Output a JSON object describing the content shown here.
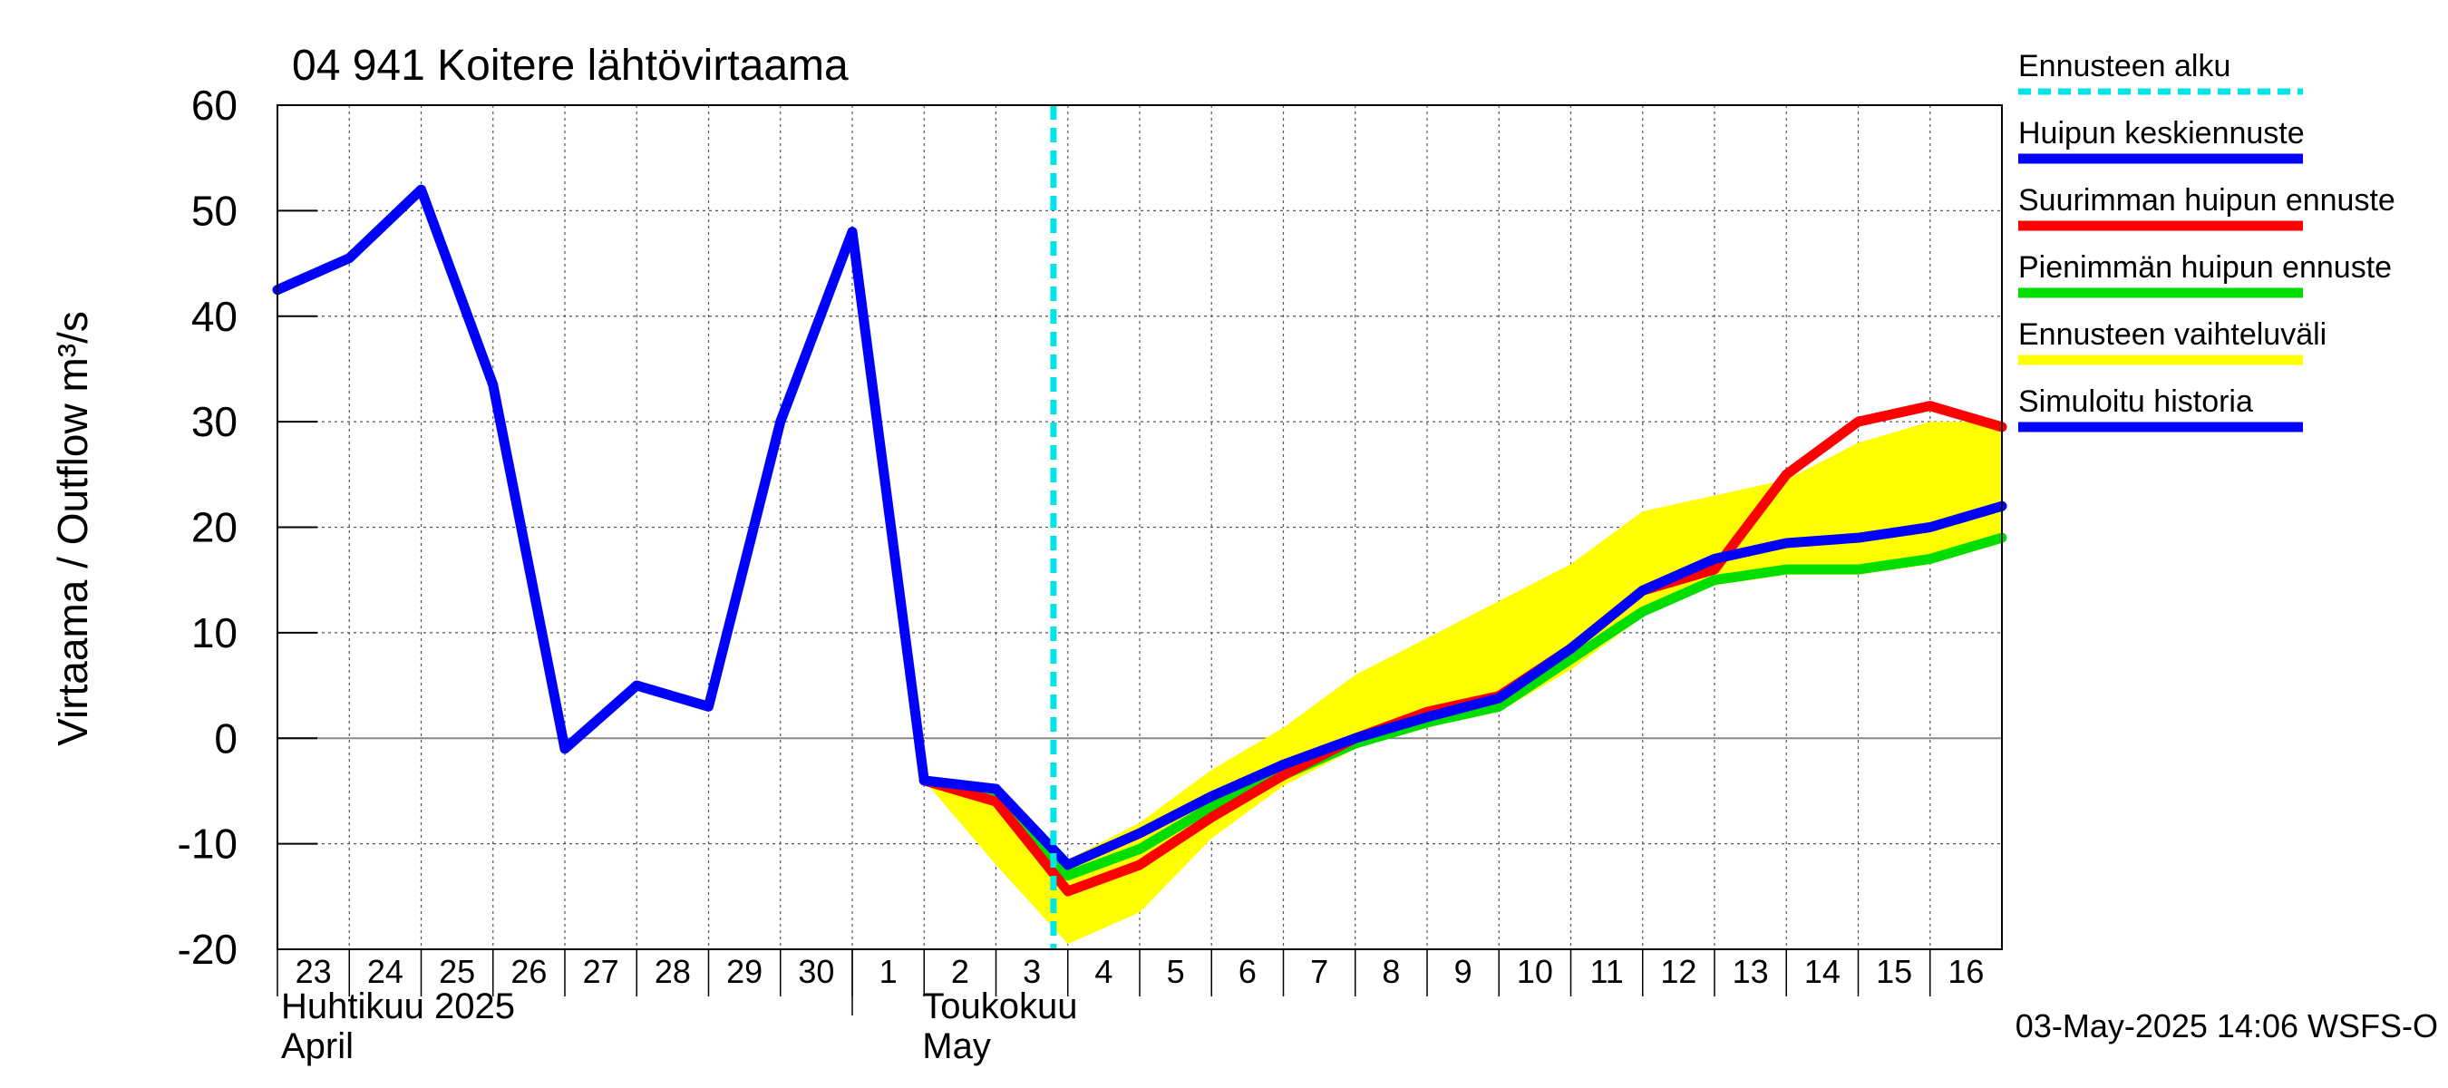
{
  "chart_data": {
    "type": "line",
    "title": "04 941 Koitere lähtövirtaama",
    "ylabel": "Virtaama / Outflow    m³/s",
    "ylim": [
      -20,
      60
    ],
    "yticks": [
      -20,
      -10,
      0,
      10,
      20,
      30,
      40,
      50,
      60
    ],
    "x_day_range": [
      23,
      47
    ],
    "grid": true,
    "legend_position": "right",
    "x_tick_labels": [
      "23",
      "24",
      "25",
      "26",
      "27",
      "28",
      "29",
      "30",
      "1",
      "2",
      "3",
      "4",
      "5",
      "6",
      "7",
      "8",
      "9",
      "10",
      "11",
      "12",
      "13",
      "14",
      "15",
      "16"
    ],
    "x_tick_days": [
      23,
      24,
      25,
      26,
      27,
      28,
      29,
      30,
      31,
      32,
      33,
      34,
      35,
      36,
      37,
      38,
      39,
      40,
      41,
      42,
      43,
      44,
      45,
      46
    ],
    "month_labels": [
      {
        "fi": "Huhtikuu  2025",
        "en": "April"
      },
      {
        "fi": "Toukokuu",
        "en": "May"
      }
    ],
    "forecast_start_day": 33.8,
    "series": [
      {
        "name": "Simuloitu historia",
        "color": "#0000ff",
        "x": [
          23,
          24,
          25,
          26,
          27,
          28,
          29,
          30,
          31,
          32,
          33
        ],
        "y": [
          42.5,
          45.5,
          52,
          33.5,
          -1,
          5,
          3,
          30,
          48,
          -4,
          -4.8
        ]
      },
      {
        "name": "Huipun keskiennuste",
        "color": "#0000ff",
        "x": [
          33,
          34,
          35,
          36,
          37,
          38,
          39,
          40,
          41,
          42,
          43,
          44,
          45,
          46,
          47
        ],
        "y": [
          -4.8,
          -12,
          -9,
          -5.5,
          -2.5,
          0,
          2,
          3.8,
          8.5,
          14,
          17,
          18.5,
          19,
          20,
          22
        ]
      },
      {
        "name": "Suurimman huipun ennuste",
        "color": "#ff0000",
        "x": [
          32,
          33,
          34,
          35,
          36,
          37,
          38,
          39,
          40,
          41,
          42,
          43,
          44,
          45,
          46,
          47
        ],
        "y": [
          -4,
          -6,
          -14.5,
          -12,
          -7.5,
          -3.5,
          0,
          2.5,
          4,
          8.5,
          14,
          16,
          25,
          30,
          31.5,
          29.5
        ]
      },
      {
        "name": "Pienimmän huipun ennuste",
        "color": "#00dd00",
        "x": [
          32,
          33,
          34,
          35,
          36,
          37,
          38,
          39,
          40,
          41,
          42,
          43,
          44,
          45,
          46,
          47
        ],
        "y": [
          -4,
          -5.5,
          -13,
          -10.5,
          -6.5,
          -3.5,
          -0.5,
          1.5,
          3,
          7.5,
          12,
          15,
          16,
          16,
          17,
          19
        ]
      }
    ],
    "range_band": {
      "name": "Ennusteen vaihteluväli",
      "color": "#ffff00",
      "x": [
        32,
        33,
        34,
        35,
        36,
        37,
        38,
        39,
        40,
        41,
        42,
        43,
        44,
        45,
        46,
        47
      ],
      "upper": [
        -4,
        -4.5,
        -11.5,
        -8,
        -3,
        1,
        6,
        9.5,
        13,
        16.5,
        21.5,
        23,
        24.5,
        28,
        30,
        30
      ],
      "lower": [
        -4,
        -12,
        -19.5,
        -16.5,
        -9.5,
        -4.5,
        -1,
        1,
        2.5,
        6.5,
        11.5,
        14.5,
        15.5,
        15.5,
        16.5,
        18.5
      ]
    },
    "legend": [
      {
        "label": "Ennusteen alku",
        "color": "#00e5e5",
        "style": "dashed"
      },
      {
        "label": "Huipun keskiennuste",
        "color": "#0000ff",
        "style": "solid"
      },
      {
        "label": "Suurimman huipun ennuste",
        "color": "#ff0000",
        "style": "solid"
      },
      {
        "label": "Pienimmän huipun ennuste",
        "color": "#00dd00",
        "style": "solid"
      },
      {
        "label": "Ennusteen vaihteluväli",
        "color": "#ffff00",
        "style": "solid"
      },
      {
        "label": "Simuloitu historia",
        "color": "#0000ff",
        "style": "solid"
      }
    ],
    "footer": "03-May-2025 14:06 WSFS-O"
  }
}
